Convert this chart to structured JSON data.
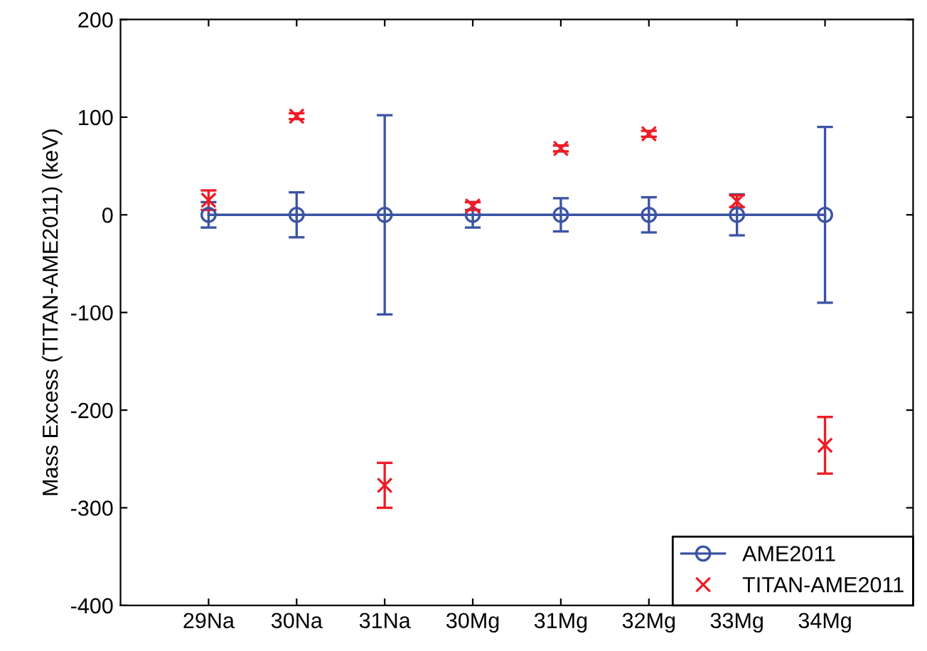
{
  "chart_data": {
    "type": "scatter",
    "ylabel": "Mass Excess (TITAN-AME2011) (keV)",
    "categories": [
      "29Na",
      "30Na",
      "31Na",
      "30Mg",
      "31Mg",
      "32Mg",
      "33Mg",
      "34Mg"
    ],
    "series": [
      {
        "name": "AME2011",
        "type": "line",
        "color": "#3a53a4",
        "marker": "circle",
        "values": [
          0,
          0,
          0,
          0,
          0,
          0,
          0,
          0
        ],
        "errors": [
          13,
          23,
          102,
          13,
          17,
          18,
          21,
          90
        ]
      },
      {
        "name": "TITAN-AME2011",
        "color": "#ee1c25",
        "marker": "cross",
        "values": [
          15,
          101,
          -277,
          9,
          68,
          83,
          14,
          -236
        ],
        "errors": [
          10,
          3,
          23,
          4,
          3,
          3,
          6,
          29
        ]
      }
    ],
    "ylim": [
      -400,
      200
    ],
    "yticks": [
      -400,
      -300,
      -200,
      -100,
      0,
      100,
      200
    ],
    "grid": false,
    "legend": "bottom right"
  }
}
